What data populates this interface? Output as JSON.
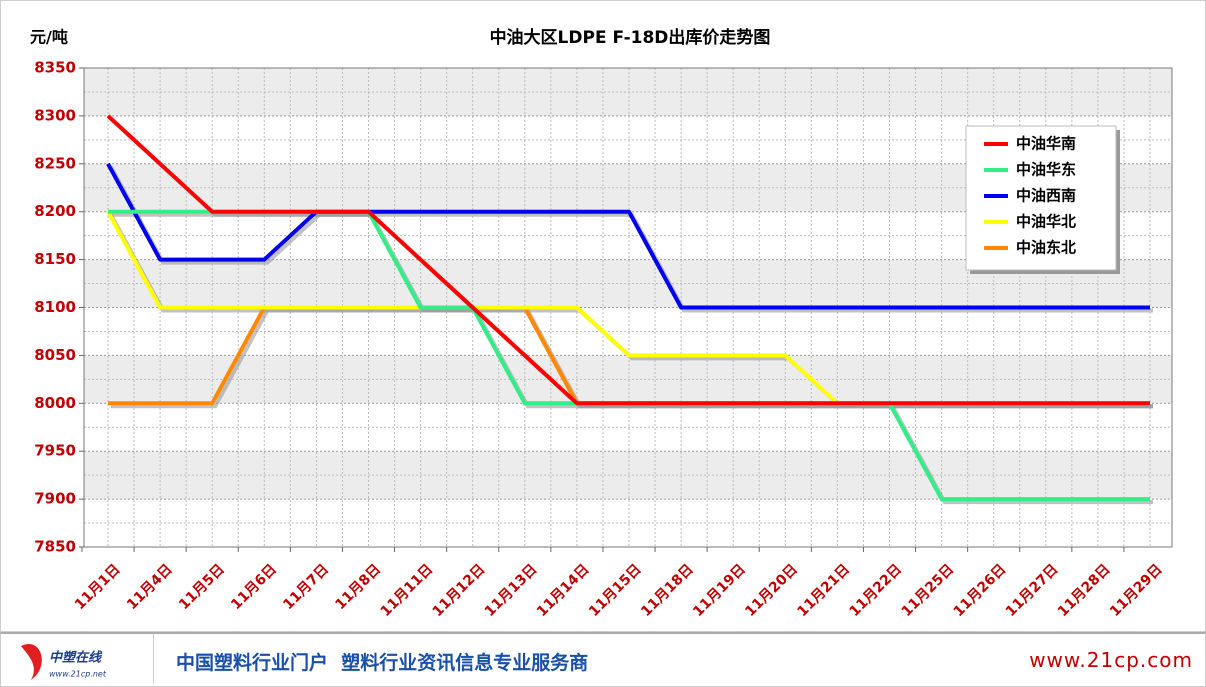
{
  "chart_data": {
    "type": "line",
    "title": "中油大区LDPE F-18D出库价走势图",
    "y_label": "元/吨",
    "categories": [
      "11月1日",
      "11月4日",
      "11月5日",
      "11月6日",
      "11月7日",
      "11月8日",
      "11月11日",
      "11月12日",
      "11月13日",
      "11月14日",
      "11月15日",
      "11月18日",
      "11月19日",
      "11月20日",
      "11月21日",
      "11月22日",
      "11月25日",
      "11月26日",
      "11月27日",
      "11月28日",
      "11月29日"
    ],
    "series": [
      {
        "name": "中油华南",
        "color": "#ff0000",
        "values": [
          8300,
          8250,
          8200,
          8200,
          8200,
          8200,
          8150,
          8100,
          8050,
          8000,
          8000,
          8000,
          8000,
          8000,
          8000,
          8000,
          8000,
          8000,
          8000,
          8000,
          8000
        ]
      },
      {
        "name": "中油华东",
        "color": "#33ee88",
        "values": [
          8200,
          8200,
          8200,
          8200,
          8200,
          8200,
          8100,
          8100,
          8000,
          8000,
          8000,
          8000,
          8000,
          8000,
          8000,
          8000,
          7900,
          7900,
          7900,
          7900,
          7900
        ]
      },
      {
        "name": "中油西南",
        "color": "#0000ee",
        "values": [
          8250,
          8150,
          8150,
          8150,
          8200,
          8200,
          8200,
          8200,
          8200,
          8200,
          8200,
          8100,
          8100,
          8100,
          8100,
          8100,
          8100,
          8100,
          8100,
          8100,
          8100
        ]
      },
      {
        "name": "中油华北",
        "color": "#ffff00",
        "values": [
          8200,
          8100,
          8100,
          8100,
          8100,
          8100,
          8100,
          8100,
          8100,
          8100,
          8050,
          8050,
          8050,
          8050,
          8000,
          8000,
          8000,
          8000,
          8000,
          8000,
          8000
        ]
      },
      {
        "name": "中油东北",
        "color": "#ff8800",
        "values": [
          8000,
          8000,
          8000,
          8100,
          8100,
          8100,
          8100,
          8100,
          8100,
          8000,
          8000,
          8000,
          8000,
          8000,
          8000,
          8000,
          8000,
          8000,
          8000,
          8000,
          8000
        ]
      }
    ],
    "ylim": [
      7850,
      8350
    ],
    "yticks": [
      7850,
      7900,
      7950,
      8000,
      8050,
      8100,
      8150,
      8200,
      8250,
      8300,
      8350
    ],
    "grid": true,
    "legend": "upper right"
  },
  "footer": {
    "logo": "中塑在线",
    "logo_url": "www.21cp.net",
    "slogan": "中国塑料行业门户  塑料行业资讯信息专业服务商",
    "site": "www.21cp.com"
  }
}
